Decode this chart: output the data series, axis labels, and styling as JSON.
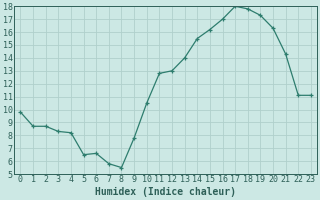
{
  "x": [
    0,
    1,
    2,
    3,
    4,
    5,
    6,
    7,
    8,
    9,
    10,
    11,
    12,
    13,
    14,
    15,
    16,
    17,
    18,
    19,
    20,
    21,
    22,
    23
  ],
  "y": [
    9.8,
    8.7,
    8.7,
    8.3,
    8.2,
    6.5,
    6.6,
    5.8,
    5.5,
    7.8,
    10.5,
    12.8,
    13.0,
    14.0,
    15.5,
    16.2,
    17.0,
    18.0,
    17.8,
    17.3,
    16.3,
    14.3,
    11.1,
    11.1
  ],
  "line_color": "#2e7d6e",
  "marker": "+",
  "bg_color": "#cce8e4",
  "grid_color": "#b0d0cc",
  "xlabel": "Humidex (Indice chaleur)",
  "ylim": [
    5,
    18
  ],
  "xlim_min": -0.5,
  "xlim_max": 23.5,
  "yticks": [
    5,
    6,
    7,
    8,
    9,
    10,
    11,
    12,
    13,
    14,
    15,
    16,
    17,
    18
  ],
  "tick_color": "#2e6058",
  "label_color": "#2e6058",
  "font_size": 6.0,
  "xlabel_font_size": 7.0
}
